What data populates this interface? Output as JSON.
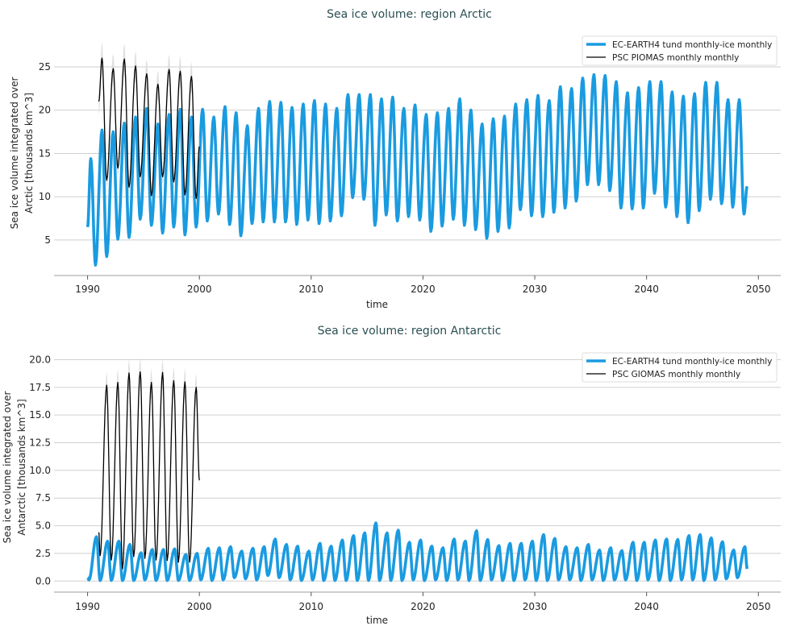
{
  "chart_data": [
    {
      "type": "line",
      "title": "Sea ice volume: region Arctic",
      "xlabel": "time",
      "ylabel": [
        "Sea ice volume integrated over",
        "Arctic [thousands km^3]"
      ],
      "xlim": [
        1987,
        2052
      ],
      "ylim": [
        0.9,
        29
      ],
      "xticks": [
        1990,
        2000,
        2010,
        2020,
        2030,
        2040,
        2050
      ],
      "yticks": [
        5,
        10,
        15,
        20,
        25
      ],
      "grid": "horizontal",
      "legend_position": "top-right",
      "series": [
        {
          "name": "EC-EARTH4 tund monthly-ice monthly",
          "color": "#1a9be0",
          "years": [
            1990,
            2048
          ],
          "start": [
            1990.0,
            6.5
          ],
          "end": [
            2049.0,
            11.2
          ],
          "max_month": 4,
          "min_month": 9,
          "annual_max": [
            14.4,
            17.7,
            17.5,
            18.5,
            19.2,
            20.2,
            18.4,
            19.5,
            20.1,
            19.2,
            20.1,
            19.2,
            20.4,
            19.7,
            18.2,
            20.2,
            21.0,
            20.9,
            20.3,
            20.7,
            21.1,
            20.7,
            20.2,
            21.8,
            21.8,
            21.8,
            21.3,
            21.5,
            20.2,
            20.6,
            19.5,
            19.7,
            20.2,
            21.3,
            20.0,
            18.4,
            19.0,
            19.3,
            20.7,
            21.2,
            21.7,
            21.1,
            22.7,
            22.5,
            23.7,
            24.1,
            24.0,
            23.3,
            22.0,
            22.6,
            23.3,
            23.3,
            22.1,
            21.6,
            21.9,
            23.2,
            23.2,
            21.2,
            21.2
          ],
          "annual_min": [
            2.1,
            3.1,
            5.1,
            5.3,
            7.4,
            6.7,
            5.8,
            6.5,
            5.6,
            6.5,
            7.2,
            8.0,
            6.8,
            5.5,
            6.9,
            7.1,
            7.1,
            7.1,
            6.8,
            7.3,
            6.9,
            7.2,
            7.8,
            9.9,
            9.7,
            6.7,
            7.9,
            7.2,
            7.7,
            7.3,
            6.0,
            6.6,
            7.4,
            6.7,
            6.2,
            5.2,
            6.0,
            6.4,
            8.5,
            7.8,
            7.7,
            8.2,
            8.7,
            9.5,
            11.4,
            11.4,
            10.7,
            8.7,
            8.6,
            8.7,
            10.4,
            8.8,
            7.7,
            7.0,
            8.4,
            9.7,
            9.2,
            8.8,
            8.0
          ]
        },
        {
          "name": "PSC PIOMAS monthly monthly",
          "color": "#000000",
          "years": [
            1991,
            1999
          ],
          "start": [
            1991.0,
            21.0
          ],
          "end": [
            2000.0,
            15.8
          ],
          "max_month": 4,
          "min_month": 9,
          "annual_max": [
            26.0,
            24.8,
            25.9,
            25.1,
            24.2,
            23.0,
            24.7,
            24.5,
            23.9
          ],
          "annual_min": [
            11.9,
            13.3,
            11.1,
            12.3,
            10.1,
            12.3,
            11.7,
            10.2,
            9.8
          ],
          "uncertainty_band": true
        }
      ]
    },
    {
      "type": "line",
      "title": "Sea ice volume: region Antarctic",
      "xlabel": "time",
      "ylabel": [
        "Sea ice volume integrated over",
        "Antarctic [thousands km^3]"
      ],
      "xlim": [
        1987,
        2052
      ],
      "ylim": [
        -1.0,
        21.2
      ],
      "xticks": [
        1990,
        2000,
        2010,
        2020,
        2030,
        2040,
        2050
      ],
      "yticks": [
        0.0,
        2.5,
        5.0,
        7.5,
        10.0,
        12.5,
        15.0,
        17.5,
        20.0
      ],
      "grid": "horizontal",
      "legend_position": "top-right",
      "series": [
        {
          "name": "EC-EARTH4 tund monthly-ice monthly",
          "color": "#1a9be0",
          "years": [
            1990,
            2048
          ],
          "start": [
            1990.0,
            0.3
          ],
          "end": [
            2049.0,
            1.1
          ],
          "max_month": 10,
          "min_month": 2,
          "annual_max": [
            4.0,
            3.6,
            3.6,
            3.3,
            2.55,
            2.85,
            2.85,
            2.9,
            2.4,
            2.5,
            2.95,
            3.0,
            3.1,
            2.7,
            2.95,
            3.1,
            3.8,
            3.3,
            3.15,
            2.7,
            3.4,
            3.15,
            3.7,
            4.1,
            4.35,
            5.25,
            4.35,
            4.6,
            3.5,
            3.7,
            3.15,
            3.0,
            3.8,
            3.6,
            4.55,
            3.75,
            3.2,
            3.4,
            3.4,
            3.6,
            4.2,
            3.85,
            3.1,
            3.0,
            3.3,
            2.8,
            3.0,
            2.75,
            3.5,
            3.5,
            3.7,
            3.8,
            3.75,
            4.1,
            4.2,
            3.9,
            3.55,
            2.8,
            3.1
          ],
          "annual_min": [
            0.1,
            0.05,
            0.05,
            0.05,
            0.05,
            0.1,
            0.05,
            0.05,
            0.05,
            0.05,
            0.1,
            0.05,
            0.1,
            0.3,
            0.2,
            0.1,
            0.5,
            0.3,
            0.1,
            0.05,
            0.1,
            0.05,
            0.05,
            0.05,
            0.05,
            0.05,
            0.05,
            0.05,
            0.05,
            0.1,
            0.05,
            0.1,
            0.05,
            0.1,
            0.05,
            0.05,
            0.1,
            0.05,
            0.05,
            0.1,
            0.05,
            0.05,
            0.1,
            0.1,
            0.05,
            0.1,
            0.05,
            0.1,
            0.1,
            0.05,
            0.1,
            0.05,
            0.05,
            0.1,
            0.1,
            0.05,
            0.1,
            0.2,
            0.3
          ]
        },
        {
          "name": "PSC GIOMAS monthly monthly",
          "color": "#000000",
          "years": [
            1991,
            1999
          ],
          "start": [
            1991.0,
            4.4
          ],
          "end": [
            2000.0,
            9.1
          ],
          "max_month": 9,
          "min_month": 2,
          "annual_max": [
            17.7,
            17.95,
            18.8,
            18.9,
            17.95,
            18.85,
            18.1,
            18.0,
            17.5
          ],
          "annual_min": [
            2.3,
            1.9,
            1.1,
            2.2,
            2.05,
            1.9,
            1.85,
            1.7,
            1.7
          ],
          "uncertainty_band": true
        }
      ]
    }
  ]
}
